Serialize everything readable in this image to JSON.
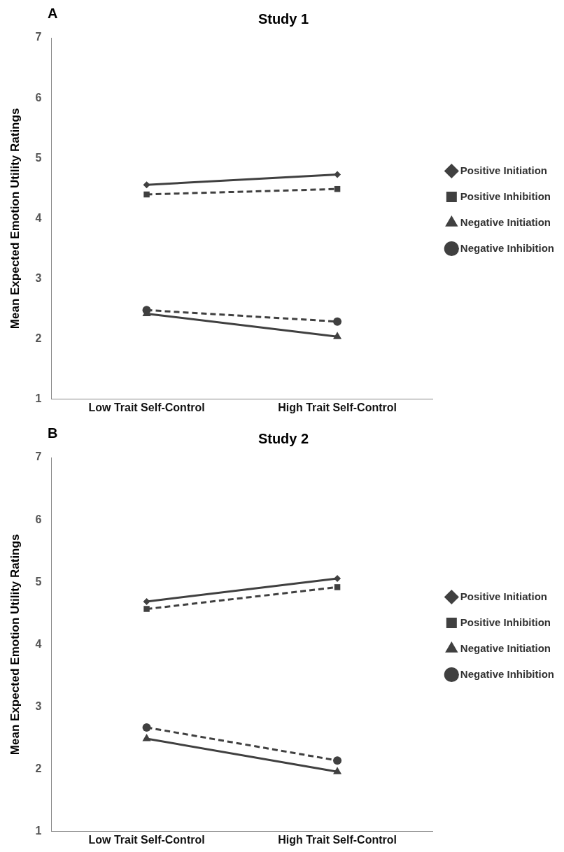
{
  "chart_data": [
    {
      "type": "line",
      "title": "Study 1",
      "ylabel": "Mean Expected Emotion Utility Ratings",
      "annotations": [
        "A"
      ],
      "categories": [
        "Low Trait Self-Control",
        "High Trait Self-Control"
      ],
      "ylim": [
        1,
        7
      ],
      "yticks": [
        1,
        2,
        3,
        4,
        5,
        6,
        7
      ],
      "grid": false,
      "legend": "right",
      "series": [
        {
          "name": "Positive Initiation",
          "color": "#404040",
          "values": [
            4.56,
            4.73
          ],
          "marker": "diamond",
          "line_style": "solid"
        },
        {
          "name": "Positive Inhibition",
          "color": "#404040",
          "values": [
            4.4,
            4.49
          ],
          "marker": "square",
          "line_style": "dashed"
        },
        {
          "name": "Negative Initiation",
          "color": "#404040",
          "values": [
            2.42,
            2.04
          ],
          "marker": "triangle",
          "line_style": "solid"
        },
        {
          "name": "Negative Inhibition",
          "color": "#404040",
          "values": [
            2.48,
            2.29
          ],
          "marker": "circle",
          "line_style": "dashed"
        }
      ]
    },
    {
      "type": "line",
      "title": "Study 2",
      "ylabel": "Mean Expected Emotion Utility Ratings",
      "annotations": [
        "B"
      ],
      "categories": [
        "Low Trait Self-Control",
        "High Trait Self-Control"
      ],
      "ylim": [
        1,
        7
      ],
      "yticks": [
        1,
        2,
        3,
        4,
        5,
        6,
        7
      ],
      "grid": false,
      "legend": "right",
      "series": [
        {
          "name": "Positive Initiation",
          "color": "#404040",
          "values": [
            4.69,
            5.06
          ],
          "marker": "diamond",
          "line_style": "solid"
        },
        {
          "name": "Positive Inhibition",
          "color": "#404040",
          "values": [
            4.57,
            4.92
          ],
          "marker": "square",
          "line_style": "dashed"
        },
        {
          "name": "Negative Initiation",
          "color": "#404040",
          "values": [
            2.49,
            1.96
          ],
          "marker": "triangle",
          "line_style": "solid"
        },
        {
          "name": "Negative Inhibition",
          "color": "#404040",
          "values": [
            2.67,
            2.14
          ],
          "marker": "circle",
          "line_style": "dashed"
        }
      ]
    }
  ]
}
